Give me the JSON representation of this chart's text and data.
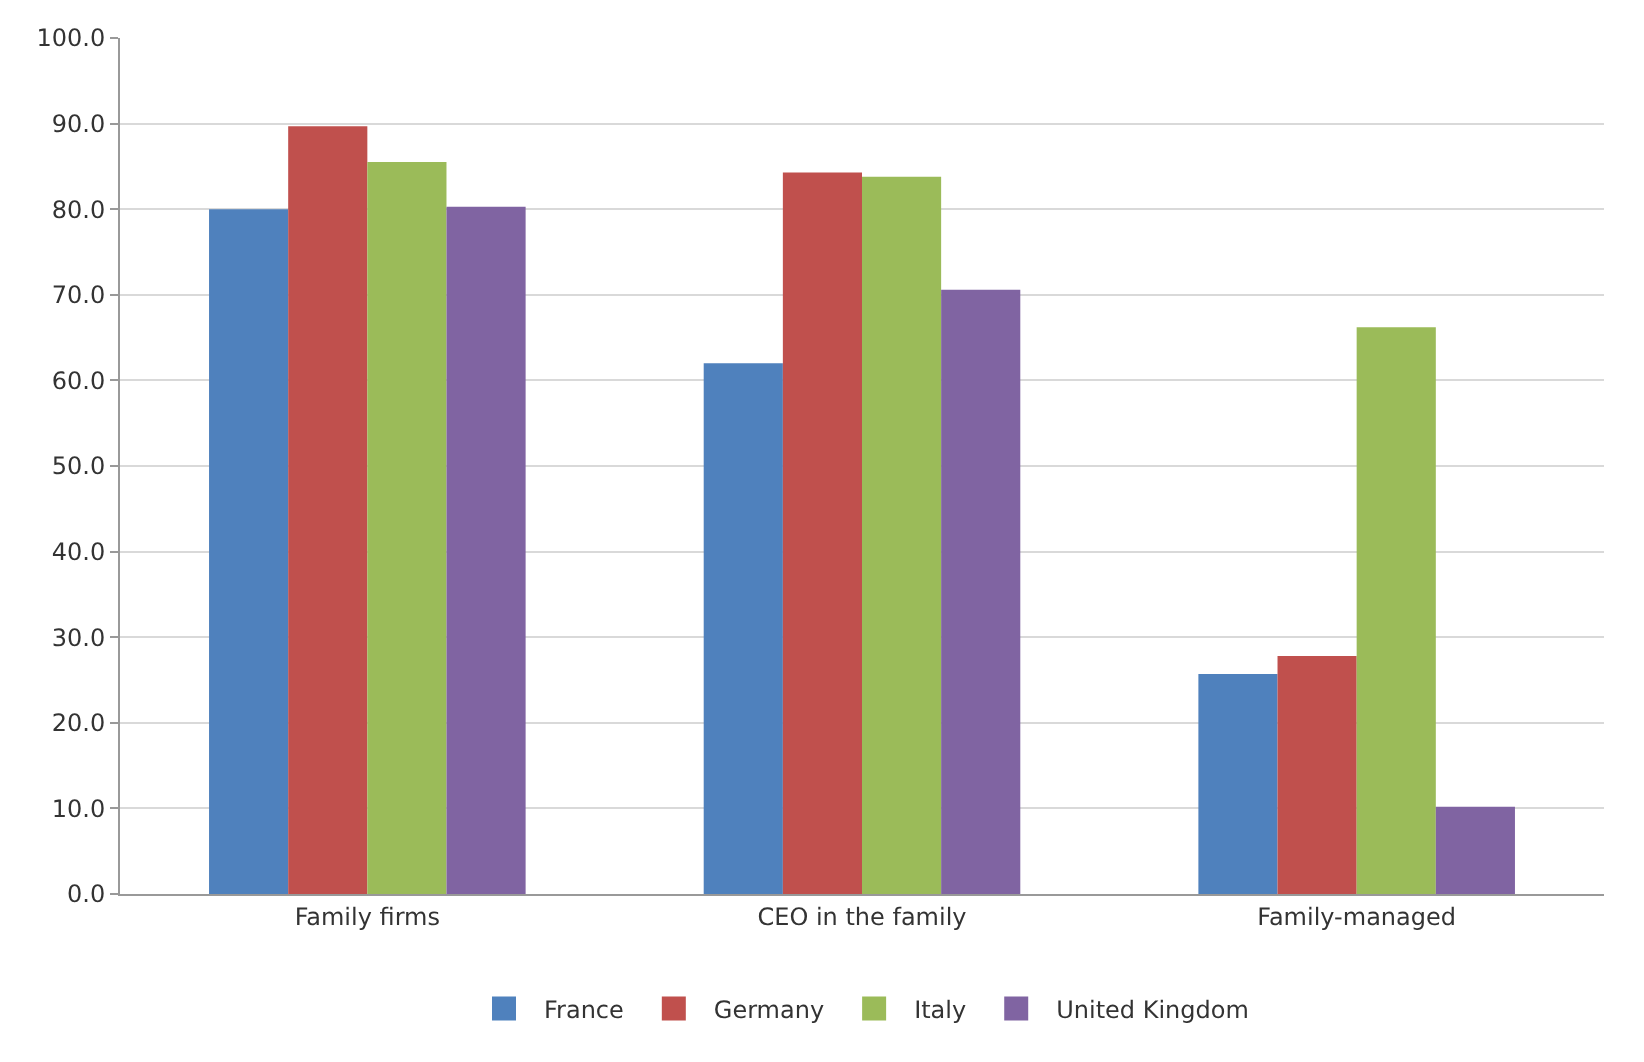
{
  "chart_data": {
    "type": "bar",
    "categories": [
      "Family firms",
      "CEO in the family",
      "Family-managed"
    ],
    "series": [
      {
        "name": "France",
        "color": "#4f81bd",
        "values": [
          80.0,
          62.0,
          25.7
        ]
      },
      {
        "name": "Germany",
        "color": "#c0504d",
        "values": [
          89.7,
          84.3,
          27.8
        ]
      },
      {
        "name": "Italy",
        "color": "#9bbb59",
        "values": [
          85.5,
          83.8,
          66.2
        ]
      },
      {
        "name": "United Kingdom",
        "color": "#8064a2",
        "values": [
          80.3,
          70.6,
          10.2
        ]
      }
    ],
    "ylim": [
      0,
      100
    ],
    "yticks": [
      {
        "value": 0,
        "label": "0.0"
      },
      {
        "value": 10,
        "label": "10.0"
      },
      {
        "value": 20,
        "label": "20.0"
      },
      {
        "value": 30,
        "label": "30.0"
      },
      {
        "value": 40,
        "label": "40.0"
      },
      {
        "value": 50,
        "label": "50.0"
      },
      {
        "value": 60,
        "label": "60.0"
      },
      {
        "value": 70,
        "label": "70.0"
      },
      {
        "value": 80,
        "label": "80.0"
      },
      {
        "value": 90,
        "label": "90.0"
      },
      {
        "value": 100,
        "label": "100.0"
      }
    ],
    "grid": "y",
    "legend": "bottom"
  }
}
